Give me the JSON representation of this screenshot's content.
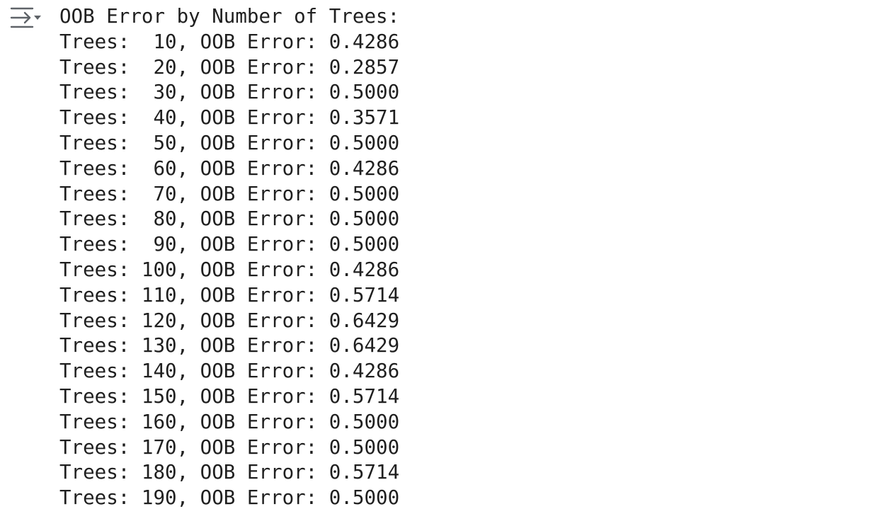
{
  "cell_output": {
    "toggle_icon": "output-collapse-icon",
    "lines": [
      "OOB Error by Number of Trees:",
      "Trees:  10, OOB Error: 0.4286",
      "Trees:  20, OOB Error: 0.2857",
      "Trees:  30, OOB Error: 0.5000",
      "Trees:  40, OOB Error: 0.3571",
      "Trees:  50, OOB Error: 0.5000",
      "Trees:  60, OOB Error: 0.4286",
      "Trees:  70, OOB Error: 0.5000",
      "Trees:  80, OOB Error: 0.5000",
      "Trees:  90, OOB Error: 0.5000",
      "Trees: 100, OOB Error: 0.4286",
      "Trees: 110, OOB Error: 0.5714",
      "Trees: 120, OOB Error: 0.6429",
      "Trees: 130, OOB Error: 0.6429",
      "Trees: 140, OOB Error: 0.4286",
      "Trees: 150, OOB Error: 0.5714",
      "Trees: 160, OOB Error: 0.5000",
      "Trees: 170, OOB Error: 0.5000",
      "Trees: 180, OOB Error: 0.5714",
      "Trees: 190, OOB Error: 0.5000"
    ]
  },
  "colors": {
    "text": "#1f1f1f",
    "icon": "#5f6368",
    "background": "#ffffff"
  }
}
